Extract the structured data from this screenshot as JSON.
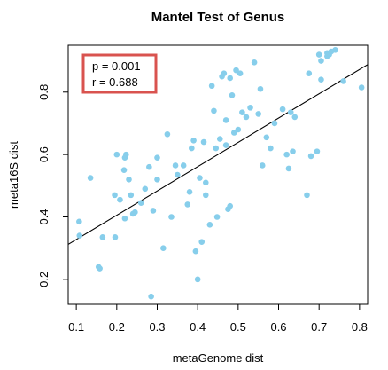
{
  "chart_data": {
    "type": "scatter",
    "title": "Mantel Test of Genus",
    "xlabel": "metaGenome dist",
    "ylabel": "meta16S dist",
    "xlim": [
      0.08,
      0.82
    ],
    "ylim": [
      0.12,
      0.95
    ],
    "xticks": [
      "0.1",
      "0.2",
      "0.3",
      "0.4",
      "0.5",
      "0.6",
      "0.7",
      "0.8"
    ],
    "yticks": [
      "0.2",
      "0.4",
      "0.6",
      "0.8"
    ],
    "grid": false,
    "annotation": {
      "lines": [
        "p = 0.001",
        "r = 0.688"
      ],
      "placement": "top-left",
      "border_color": "#d9534f"
    },
    "trendline": {
      "x": [
        0.08,
        0.82
      ],
      "y": [
        0.312,
        0.888
      ],
      "color": "#000000"
    },
    "point_color": "#87ceeb",
    "points": {
      "x": [
        0.107,
        0.108,
        0.135,
        0.155,
        0.158,
        0.165,
        0.195,
        0.196,
        0.2,
        0.208,
        0.218,
        0.22,
        0.22,
        0.223,
        0.23,
        0.235,
        0.24,
        0.245,
        0.26,
        0.27,
        0.28,
        0.285,
        0.29,
        0.3,
        0.3,
        0.315,
        0.325,
        0.335,
        0.345,
        0.35,
        0.365,
        0.375,
        0.38,
        0.385,
        0.39,
        0.395,
        0.4,
        0.405,
        0.41,
        0.415,
        0.42,
        0.42,
        0.43,
        0.435,
        0.44,
        0.445,
        0.448,
        0.455,
        0.46,
        0.465,
        0.47,
        0.47,
        0.475,
        0.48,
        0.48,
        0.485,
        0.49,
        0.495,
        0.5,
        0.505,
        0.51,
        0.52,
        0.53,
        0.54,
        0.55,
        0.555,
        0.56,
        0.57,
        0.58,
        0.59,
        0.61,
        0.62,
        0.625,
        0.63,
        0.635,
        0.64,
        0.67,
        0.675,
        0.68,
        0.695,
        0.7,
        0.705,
        0.705,
        0.72,
        0.72,
        0.725,
        0.73,
        0.74,
        0.76,
        0.805
      ],
      "y": [
        0.385,
        0.34,
        0.525,
        0.24,
        0.235,
        0.335,
        0.47,
        0.335,
        0.6,
        0.455,
        0.55,
        0.59,
        0.395,
        0.6,
        0.52,
        0.47,
        0.41,
        0.415,
        0.445,
        0.49,
        0.56,
        0.145,
        0.42,
        0.59,
        0.52,
        0.3,
        0.665,
        0.4,
        0.565,
        0.535,
        0.565,
        0.44,
        0.48,
        0.62,
        0.645,
        0.29,
        0.2,
        0.525,
        0.32,
        0.64,
        0.51,
        0.47,
        0.375,
        0.82,
        0.74,
        0.62,
        0.4,
        0.65,
        0.85,
        0.86,
        0.71,
        0.63,
        0.425,
        0.435,
        0.845,
        0.79,
        0.67,
        0.87,
        0.68,
        0.86,
        0.735,
        0.72,
        0.75,
        0.895,
        0.73,
        0.81,
        0.565,
        0.655,
        0.62,
        0.7,
        0.745,
        0.6,
        0.555,
        0.735,
        0.61,
        0.72,
        0.47,
        0.86,
        0.595,
        0.61,
        0.92,
        0.9,
        0.84,
        0.915,
        0.925,
        0.92,
        0.93,
        0.935,
        0.835,
        0.815
      ]
    }
  }
}
